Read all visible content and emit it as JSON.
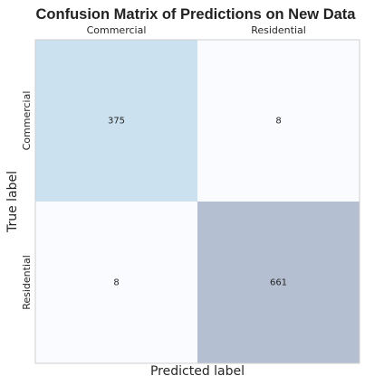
{
  "chart_data": {
    "type": "heatmap",
    "title": "Confusion Matrix of Predictions on New Data",
    "xlabel": "Predicted label",
    "ylabel": "True label",
    "x_categories": [
      "Commercial",
      "Residential"
    ],
    "y_categories": [
      "Commercial",
      "Residential"
    ],
    "values": [
      [
        375,
        8
      ],
      [
        8,
        661
      ]
    ],
    "x_tick_position": "top",
    "colormap": "Blues-like",
    "cell_colors": [
      [
        "#cbe1f0",
        "#f9fbfe"
      ],
      [
        "#f9fbfe",
        "#b4bfd1"
      ]
    ],
    "frame_color": "#cfcfcf",
    "grid": false
  }
}
